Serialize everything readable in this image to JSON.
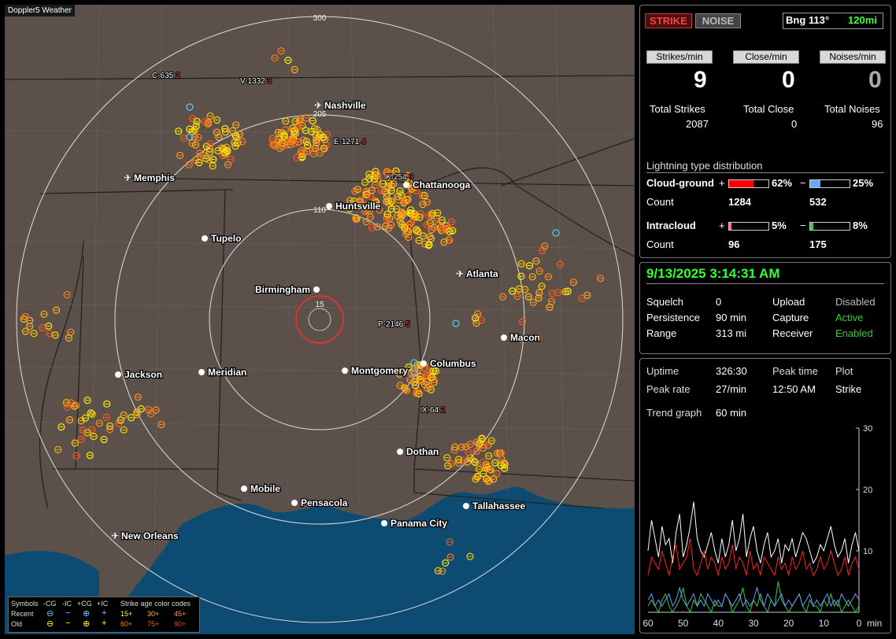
{
  "app": {
    "title": "Doppler5 Weather"
  },
  "map": {
    "range_labels": {
      "outer": "300",
      "mid": "205",
      "inner": "110",
      "center": "15"
    },
    "cities": [
      {
        "name": "Nashville",
        "type": "airport"
      },
      {
        "name": "Memphis",
        "type": "airport"
      },
      {
        "name": "Chattanooga",
        "type": "city"
      },
      {
        "name": "Huntsville",
        "type": "city"
      },
      {
        "name": "Tupelo",
        "type": "city"
      },
      {
        "name": "Atlanta",
        "type": "airport"
      },
      {
        "name": "Birmingham",
        "type": "city"
      },
      {
        "name": "Macon",
        "type": "city"
      },
      {
        "name": "Jackson",
        "type": "city"
      },
      {
        "name": "Meridian",
        "type": "city"
      },
      {
        "name": "Montgomery",
        "type": "city"
      },
      {
        "name": "Columbus",
        "type": "city"
      },
      {
        "name": "Dothan",
        "type": "city"
      },
      {
        "name": "Mobile",
        "type": "city"
      },
      {
        "name": "Pensacola",
        "type": "city"
      },
      {
        "name": "Tallahassee",
        "type": "city"
      },
      {
        "name": "Panama City",
        "type": "city"
      },
      {
        "name": "New Orleans",
        "type": "airport"
      }
    ],
    "storm_tracks": [
      {
        "id": "C-635",
        "count": "2"
      },
      {
        "id": "V-1332",
        "count": "3"
      },
      {
        "id": "E-1271",
        "count": "4"
      },
      {
        "id": "K-254",
        "count": "3"
      },
      {
        "id": "P-2146",
        "count": "5"
      },
      {
        "id": "X-64",
        "count": "2"
      }
    ]
  },
  "legend": {
    "symbols_label": "Symbols",
    "cols": [
      "-CG",
      "-IC",
      "+CG",
      "+IC"
    ],
    "age_title": "Strike age color codes",
    "recent_label": "Recent",
    "old_label": "Old",
    "recent_ages": [
      "15+",
      "30+",
      "45+"
    ],
    "old_ages": [
      "60+",
      "75+",
      "90+"
    ]
  },
  "panel1": {
    "strike_btn": "STRIKE",
    "noise_btn": "NOISE",
    "bearing": "Bng 113°",
    "range": "120mi",
    "headers": [
      "Strikes/min",
      "Close/min",
      "Noises/min"
    ],
    "rates": [
      "9",
      "0",
      "0"
    ],
    "totals_labels": [
      "Total Strikes",
      "Total Close",
      "Total Noises"
    ],
    "totals_values": [
      "2087",
      "0",
      "96"
    ],
    "dist_title": "Lightning type distribution",
    "cg_label": "Cloud-ground",
    "ic_label": "Intracloud",
    "count_label": "Count",
    "plus": "+",
    "minus": "−",
    "cg_pos_pct": "62%",
    "cg_neg_pct": "25%",
    "cg_pos_count": "1284",
    "cg_neg_count": "532",
    "ic_pos_pct": "5%",
    "ic_neg_pct": "8%",
    "ic_pos_count": "96",
    "ic_neg_count": "175",
    "cg_pos_frac": 0.62,
    "cg_neg_frac": 0.25,
    "ic_pos_frac": 0.05,
    "ic_neg_frac": 0.08,
    "colors": {
      "cg_pos": "#ff0000",
      "cg_neg": "#66aaff",
      "ic_pos": "#ff66aa",
      "ic_neg": "#33cc33"
    }
  },
  "panel2": {
    "datetime": "9/13/2025 3:14:31 AM",
    "rows": [
      [
        "Squelch",
        "0",
        "Upload",
        "Disabled"
      ],
      [
        "Persistence",
        "90 min",
        "Capture",
        "Active"
      ],
      [
        "Range",
        "313 mi",
        "Receiver",
        "Enabled"
      ]
    ]
  },
  "panel3": {
    "uptime_label": "Uptime",
    "uptime": "326:30",
    "peak_time_label": "Peak time",
    "peak_time": "12:50 AM",
    "plot_label": "Plot",
    "plot_value": "Strike",
    "peak_rate_label": "Peak rate",
    "peak_rate": "27/min",
    "trend_label": "Trend graph",
    "trend_window": "60 min",
    "y_ticks": [
      "30",
      "20",
      "10"
    ],
    "x_ticks": [
      "60",
      "50",
      "40",
      "30",
      "20",
      "10",
      "0"
    ],
    "x_unit": "min"
  },
  "chart_data": {
    "type": "line",
    "xlim": [
      60,
      0
    ],
    "ylim": [
      0,
      30
    ],
    "series": [
      {
        "color": "#ffffff",
        "values": [
          10,
          15,
          12,
          9,
          14,
          11,
          12,
          8,
          13,
          16,
          9,
          11,
          14,
          18,
          12,
          10,
          9,
          11,
          13,
          10,
          8,
          12,
          9,
          11,
          15,
          10,
          12,
          16,
          9,
          12,
          14,
          10,
          8,
          11,
          13,
          9,
          10,
          12,
          8,
          11,
          10,
          12,
          9,
          11,
          13,
          12,
          10,
          8,
          9,
          11,
          10,
          12,
          14,
          11,
          9,
          10,
          12,
          8,
          11,
          13,
          10
        ]
      },
      {
        "color": "#ff2020",
        "values": [
          6,
          9,
          8,
          7,
          10,
          8,
          6,
          9,
          11,
          7,
          8,
          9,
          12,
          7,
          6,
          8,
          10,
          7,
          9,
          8,
          6,
          9,
          7,
          8,
          11,
          7,
          9,
          8,
          6,
          10,
          7,
          8,
          6,
          9,
          8,
          7,
          6,
          9,
          7,
          8,
          6,
          9,
          7,
          8,
          10,
          7,
          8,
          6,
          7,
          9,
          7,
          8,
          10,
          8,
          6,
          7,
          9,
          6,
          8,
          9,
          7
        ]
      },
      {
        "color": "#33cc33",
        "values": [
          1,
          2,
          1,
          0,
          2,
          3,
          1,
          0,
          1,
          2,
          4,
          1,
          0,
          2,
          1,
          3,
          2,
          1,
          0,
          2,
          1,
          1,
          3,
          2,
          0,
          1,
          2,
          4,
          1,
          0,
          2,
          1,
          3,
          1,
          0,
          2,
          1,
          5,
          2,
          1,
          0,
          1,
          2,
          3,
          1,
          0,
          2,
          1,
          1,
          0,
          2,
          1,
          3,
          1,
          2,
          0,
          1,
          2,
          1,
          0,
          1
        ]
      },
      {
        "color": "#6699ff",
        "values": [
          2,
          3,
          1,
          2,
          1,
          2,
          3,
          1,
          2,
          4,
          2,
          1,
          2,
          3,
          1,
          2,
          1,
          3,
          2,
          1,
          2,
          1,
          3,
          2,
          1,
          2,
          3,
          1,
          2,
          1,
          2,
          4,
          2,
          1,
          3,
          2,
          1,
          2,
          3,
          1,
          2,
          1,
          2,
          3,
          1,
          2,
          3,
          1,
          2,
          1,
          2,
          3,
          1,
          2,
          1,
          3,
          2,
          1,
          2,
          3,
          2
        ]
      }
    ]
  }
}
